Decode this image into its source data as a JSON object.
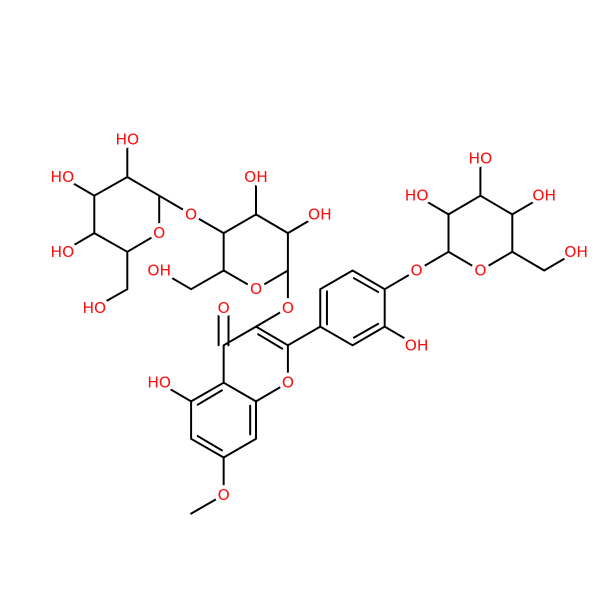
{
  "labels": [
    "HO",
    "HO",
    "HO",
    "HO",
    "O",
    "O",
    "OH",
    "OH",
    "O",
    "OH",
    "O",
    "O",
    "HO",
    "O",
    "O",
    "OH",
    "O",
    "O",
    "HO",
    "HO",
    "OH",
    "OH"
  ]
}
